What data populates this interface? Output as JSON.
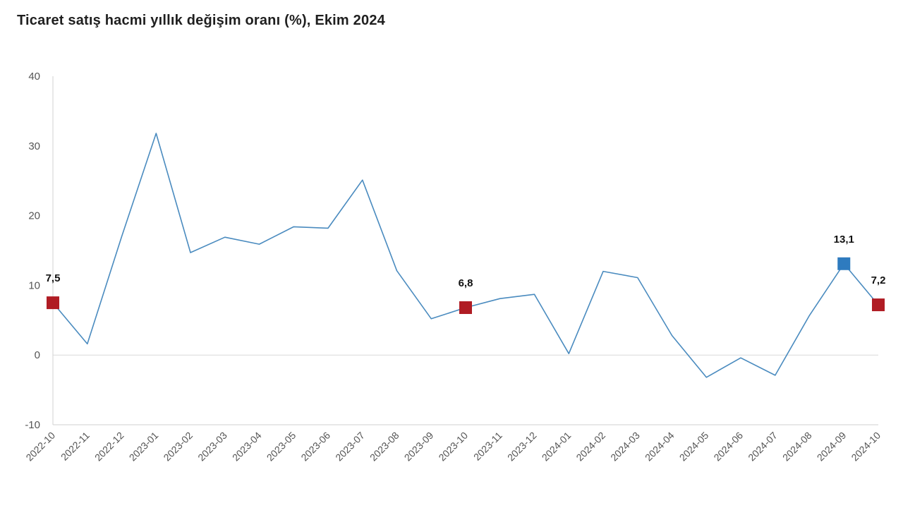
{
  "chart_data": {
    "type": "line",
    "title": "Ticaret satış hacmi yıllık değişim oranı (%), Ekim 2024",
    "xlabel": "",
    "ylabel": "",
    "ylim": [
      -10,
      40
    ],
    "yticks": [
      "-10",
      "0",
      "10",
      "20",
      "30",
      "40"
    ],
    "x": [
      "2022-10",
      "2022-11",
      "2022-12",
      "2023-01",
      "2023-02",
      "2023-03",
      "2023-04",
      "2023-05",
      "2023-06",
      "2023-07",
      "2023-08",
      "2023-09",
      "2023-10",
      "2023-11",
      "2023-12",
      "2024-01",
      "2024-02",
      "2024-03",
      "2024-04",
      "2024-05",
      "2024-06",
      "2024-07",
      "2024-08",
      "2024-09",
      "2024-10"
    ],
    "series": [
      {
        "values": [
          7.5,
          1.6,
          17.0,
          31.8,
          14.7,
          16.9,
          15.9,
          18.4,
          18.2,
          25.1,
          12.1,
          5.2,
          6.8,
          8.1,
          8.7,
          0.2,
          12.0,
          11.1,
          2.8,
          -3.2,
          -0.4,
          -2.9,
          5.7,
          13.1,
          7.2
        ],
        "color": "#4a8bbf"
      }
    ],
    "highlighted_points": [
      {
        "x": "2022-10",
        "label": "7,5",
        "color": "#b01c24"
      },
      {
        "x": "2023-10",
        "label": "6,8",
        "color": "#b01c24"
      },
      {
        "x": "2024-09",
        "label": "13,1",
        "color": "#2e7bbf"
      },
      {
        "x": "2024-10",
        "label": "7,2",
        "color": "#b01c24"
      }
    ],
    "grid": false
  }
}
